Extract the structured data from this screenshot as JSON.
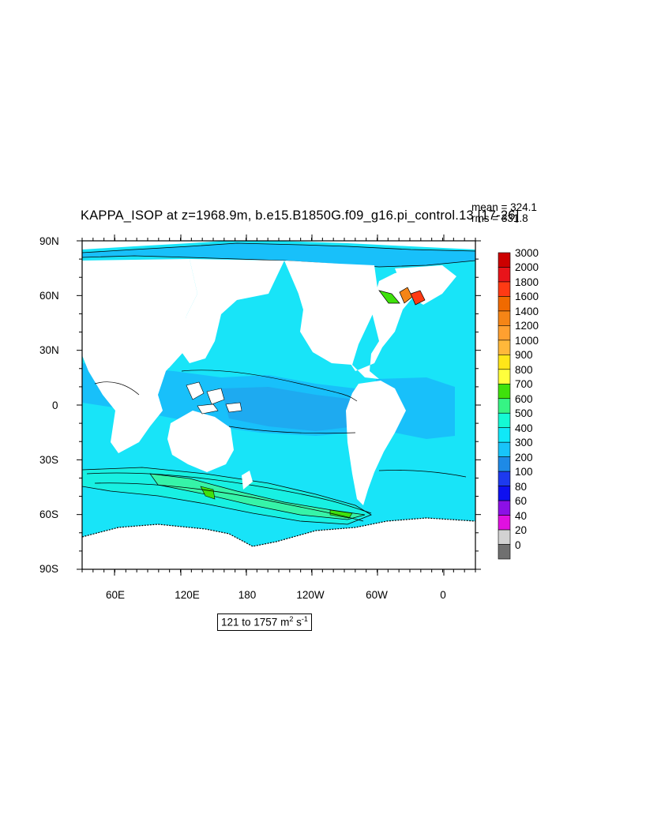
{
  "title": {
    "text": "KAPPA_ISOP at z=1968.9m, b.e15.B1850G.f09_g16.pi_control.13 [17-26]",
    "mean": "mean = 324.1",
    "rms": "rms = 331.8"
  },
  "axes": {
    "y_labels": [
      "90N",
      "60N",
      "30N",
      "0",
      "30S",
      "60S",
      "90S"
    ],
    "x_labels": [
      "60E",
      "120E",
      "180",
      "120W",
      "60W",
      "0"
    ],
    "lat_range": [
      -90,
      90
    ],
    "lon_range_east": [
      30,
      390
    ]
  },
  "range_label": {
    "text": "121 to 1757 m",
    "unit_power_1": "2",
    "unit_mid": " s",
    "unit_power_2": "-1"
  },
  "legend": {
    "levels": [
      "3000",
      "2000",
      "1800",
      "1600",
      "1400",
      "1200",
      "1000",
      "900",
      "800",
      "700",
      "600",
      "500",
      "400",
      "300",
      "200",
      "100",
      "80",
      "60",
      "40",
      "20",
      "0"
    ],
    "colors": [
      "#cc0000",
      "#e8141a",
      "#ff3a14",
      "#f06a00",
      "#f58516",
      "#ffa030",
      "#ffb83a",
      "#ffe619",
      "#ffff3c",
      "#3fe10c",
      "#36f484",
      "#14fad4",
      "#10e8f8",
      "#18c4f9",
      "#1e8ae6",
      "#1d3aef",
      "#0e10f0",
      "#8c10e6",
      "#e010e0",
      "#d2d2d2",
      "#707070"
    ]
  },
  "colors": {
    "ocean_base": "#18e4f8",
    "ocean_mid": "#18c0fa",
    "ocean_low": "#1e8ee8",
    "land": "#ffffff",
    "contour": "#000000"
  }
}
